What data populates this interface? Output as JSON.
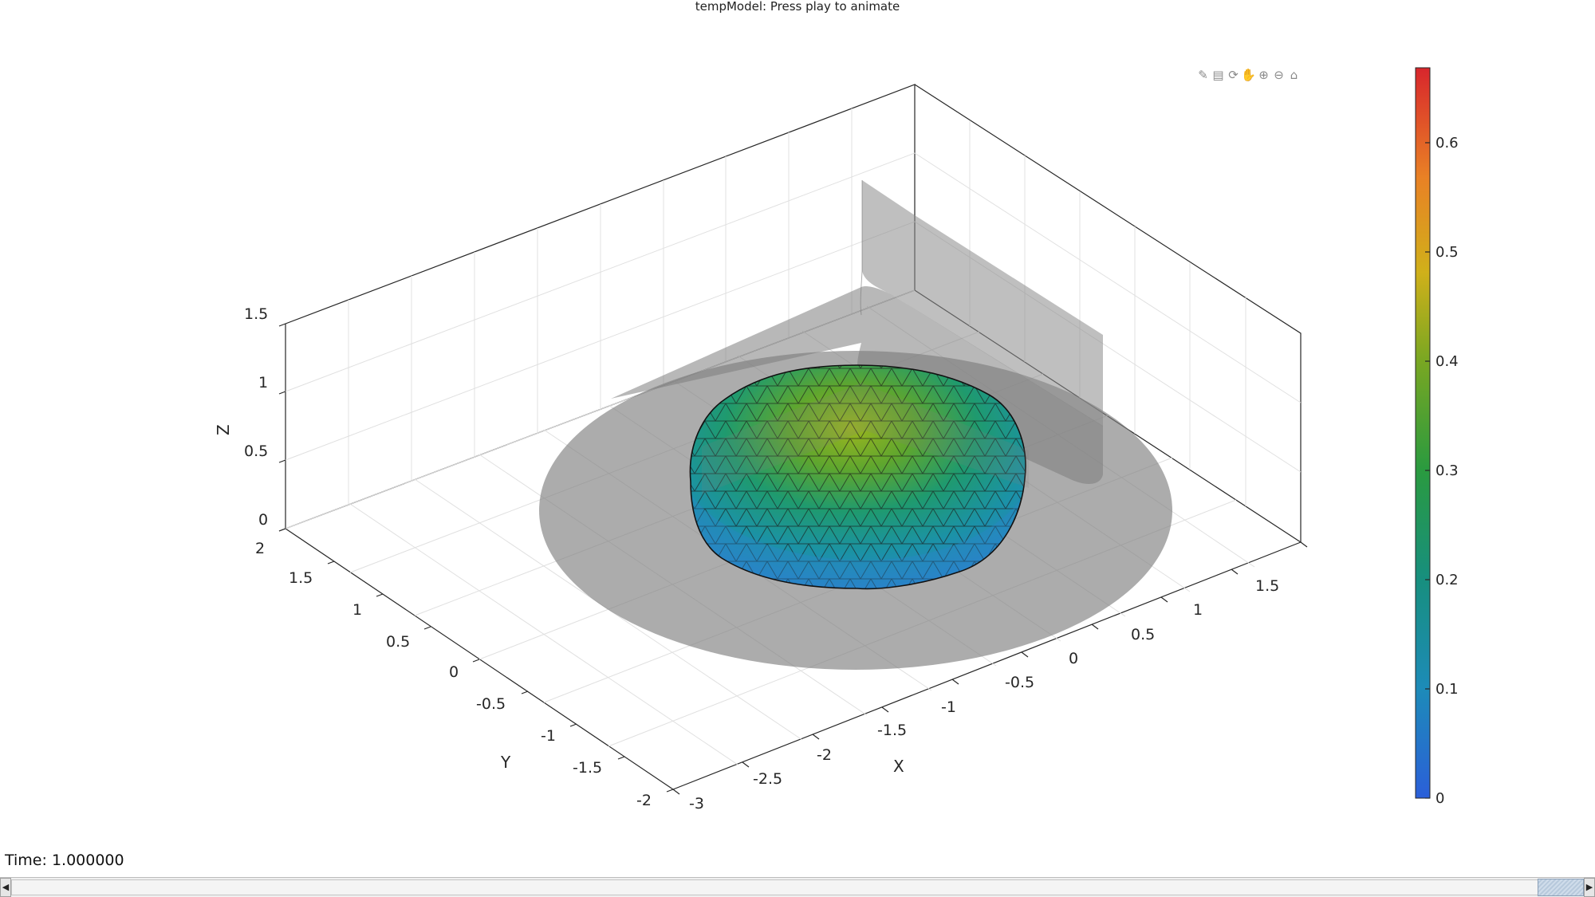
{
  "window": {
    "title": "tempModel: Press play to animate"
  },
  "toolbar": {
    "icons": [
      "brush-icon",
      "data-tips-icon",
      "rotate-3d-icon",
      "pan-icon",
      "zoom-in-icon",
      "zoom-out-icon",
      "home-icon"
    ],
    "glyphs": [
      "✎",
      "▤",
      "⟳",
      "✋",
      "⊕",
      "⊖",
      "⌂"
    ]
  },
  "axes": {
    "x_label": "X",
    "y_label": "Y",
    "z_label": "Z",
    "x_ticks": [
      "-3",
      "-2.5",
      "-2",
      "-1.5",
      "-1",
      "-0.5",
      "0",
      "0.5",
      "1",
      "1.5"
    ],
    "y_ticks": [
      "-2",
      "-1.5",
      "-1",
      "-0.5",
      "0",
      "0.5",
      "1",
      "1.5",
      "2"
    ],
    "z_ticks": [
      "0",
      "0.5",
      "1",
      "1.5"
    ],
    "grid": true,
    "box": true
  },
  "colorbar": {
    "ticks": [
      "0",
      "0.1",
      "0.2",
      "0.3",
      "0.4",
      "0.5",
      "0.6"
    ],
    "range": [
      0,
      0.67
    ],
    "colormap": [
      "#2b5fd9",
      "#1d8bb8",
      "#178f7e",
      "#2a9a3f",
      "#7aa722",
      "#d0b01a",
      "#e98125",
      "#d8262c"
    ]
  },
  "scene": {
    "dome_colors": {
      "base": "#2b86c9",
      "mid": "#1a9a8a",
      "top": "#9ab51f"
    },
    "transparent_surfaces_color": "#808080"
  },
  "status": {
    "time_label": "Time: 1.000000"
  },
  "slider": {
    "left_arrow": "◀",
    "right_arrow": "▶",
    "value": 1.0
  }
}
